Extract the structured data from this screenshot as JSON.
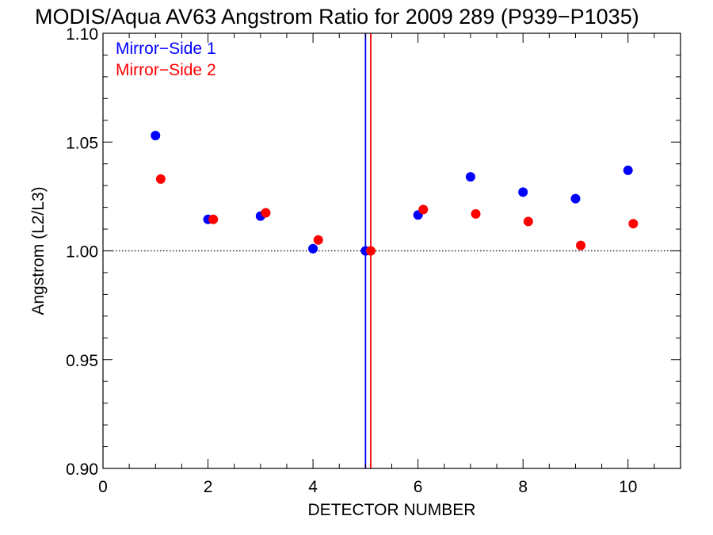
{
  "chart_data": {
    "type": "scatter",
    "title": "MODIS/Aqua AV63 Angstrom Ratio for 2009 289 (P939−P1035)",
    "xlabel": "DETECTOR NUMBER",
    "ylabel": "Angstrom (L2/L3)",
    "xlim": [
      0,
      11
    ],
    "ylim": [
      0.9,
      1.1
    ],
    "x_ticks": [
      0,
      2,
      4,
      6,
      8,
      10
    ],
    "x_tick_labels": [
      "0",
      "2",
      "4",
      "6",
      "8",
      "10"
    ],
    "y_ticks": [
      0.9,
      0.95,
      1.0,
      1.05,
      1.1
    ],
    "y_tick_labels": [
      "0.90",
      "0.95",
      "1.00",
      "1.05",
      "1.10"
    ],
    "reference_hline": 1.0,
    "vertical_lines": [
      {
        "x": 5.0,
        "color": "#0000ff"
      },
      {
        "x": 5.1,
        "color": "#ff0000"
      }
    ],
    "legend_placement": "top-left",
    "series": [
      {
        "name": "Mirror−Side 1",
        "color": "#0000ff",
        "x": [
          1,
          2,
          3,
          4,
          5,
          6,
          7,
          8,
          9,
          10
        ],
        "y": [
          1.053,
          1.0145,
          1.016,
          1.001,
          1.0,
          1.0165,
          1.034,
          1.027,
          1.024,
          1.037
        ]
      },
      {
        "name": "Mirror−Side 2",
        "color": "#ff0000",
        "x": [
          1.1,
          2.1,
          3.1,
          4.1,
          5.1,
          6.1,
          7.1,
          8.1,
          9.1,
          10.1
        ],
        "y": [
          1.033,
          1.0145,
          1.0175,
          1.005,
          1.0,
          1.019,
          1.017,
          1.0135,
          1.0025,
          1.0125
        ]
      }
    ]
  }
}
